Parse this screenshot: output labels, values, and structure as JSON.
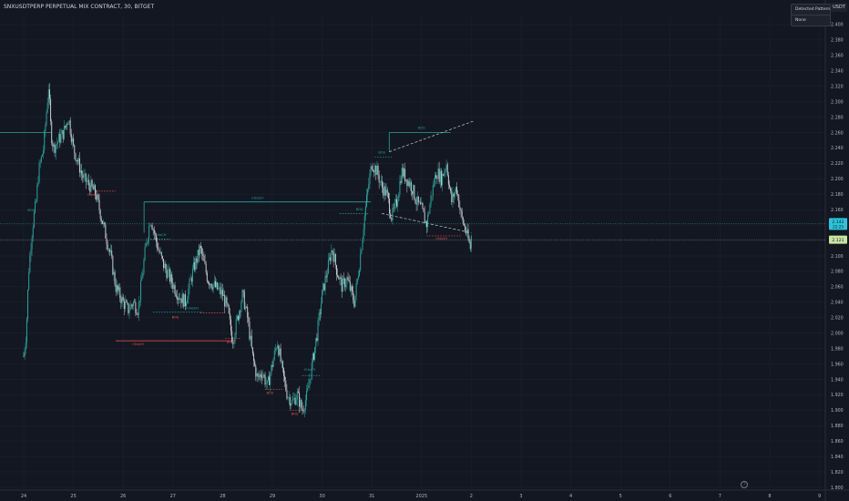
{
  "header": {
    "title": "SNXUSDTPERP PERPETUAL MIX CONTRACT, 30, BITGET",
    "panel_title": "Detected Pattern",
    "panel_value": "None",
    "unit": "USDT"
  },
  "colors": {
    "background": "#131722",
    "grid": "#1e222d",
    "up": "#26a69a",
    "down": "#ef5350",
    "wick": "#c5cbce",
    "label_bg": "#26c6da",
    "last_price_bg": "#c8e6a0"
  },
  "chart_data": {
    "type": "candlestick",
    "symbol": "SNXUSDTPERP",
    "interval": "30",
    "exchange": "BITGET",
    "y_axis": {
      "ylim": [
        1.8,
        2.42
      ],
      "ticks": [
        "1.800",
        "1.820",
        "1.840",
        "1.860",
        "1.880",
        "1.900",
        "1.920",
        "1.940",
        "1.960",
        "1.980",
        "2.000",
        "2.020",
        "2.040",
        "2.060",
        "2.080",
        "2.100",
        "2.120",
        "2.140",
        "2.160",
        "2.180",
        "2.200",
        "2.220",
        "2.240",
        "2.260",
        "2.280",
        "2.300",
        "2.320",
        "2.340",
        "2.360",
        "2.380",
        "2.400"
      ]
    },
    "x_axis": {
      "ticks": [
        "24",
        "25",
        "26",
        "27",
        "28",
        "29",
        "30",
        "31",
        "2025",
        "2",
        "3",
        "4",
        "5",
        "6",
        "7",
        "8",
        "9"
      ]
    },
    "price_path": [
      [
        0.0,
        1.97
      ],
      [
        0.05,
        2.0
      ],
      [
        0.1,
        2.08
      ],
      [
        0.15,
        2.12
      ],
      [
        0.2,
        2.15
      ],
      [
        0.25,
        2.17
      ],
      [
        0.3,
        2.21
      ],
      [
        0.4,
        2.24
      ],
      [
        0.5,
        2.32
      ],
      [
        0.55,
        2.26
      ],
      [
        0.6,
        2.24
      ],
      [
        0.7,
        2.25
      ],
      [
        0.8,
        2.26
      ],
      [
        0.9,
        2.28
      ],
      [
        1.0,
        2.24
      ],
      [
        1.2,
        2.2
      ],
      [
        1.35,
        2.19
      ],
      [
        1.45,
        2.18
      ],
      [
        1.6,
        2.14
      ],
      [
        1.75,
        2.1
      ],
      [
        1.85,
        2.06
      ],
      [
        2.0,
        2.04
      ],
      [
        2.1,
        2.03
      ],
      [
        2.2,
        2.04
      ],
      [
        2.3,
        2.03
      ],
      [
        2.45,
        2.11
      ],
      [
        2.55,
        2.15
      ],
      [
        2.7,
        2.11
      ],
      [
        2.8,
        2.09
      ],
      [
        2.95,
        2.07
      ],
      [
        3.1,
        2.05
      ],
      [
        3.25,
        2.04
      ],
      [
        3.4,
        2.08
      ],
      [
        3.55,
        2.11
      ],
      [
        3.7,
        2.07
      ],
      [
        3.85,
        2.06
      ],
      [
        4.0,
        2.05
      ],
      [
        4.1,
        2.03
      ],
      [
        4.2,
        1.99
      ],
      [
        4.3,
        2.02
      ],
      [
        4.4,
        2.05
      ],
      [
        4.5,
        2.02
      ],
      [
        4.6,
        1.97
      ],
      [
        4.7,
        1.94
      ],
      [
        4.8,
        1.95
      ],
      [
        4.9,
        1.93
      ],
      [
        5.0,
        1.96
      ],
      [
        5.1,
        1.99
      ],
      [
        5.2,
        1.95
      ],
      [
        5.3,
        1.92
      ],
      [
        5.4,
        1.91
      ],
      [
        5.5,
        1.92
      ],
      [
        5.6,
        1.9
      ],
      [
        5.7,
        1.92
      ],
      [
        5.8,
        1.96
      ],
      [
        5.9,
        2.0
      ],
      [
        6.0,
        2.05
      ],
      [
        6.1,
        2.08
      ],
      [
        6.2,
        2.11
      ],
      [
        6.3,
        2.08
      ],
      [
        6.4,
        2.06
      ],
      [
        6.5,
        2.07
      ],
      [
        6.6,
        2.05
      ],
      [
        6.65,
        2.04
      ],
      [
        6.75,
        2.09
      ],
      [
        6.85,
        2.15
      ],
      [
        6.95,
        2.2
      ],
      [
        7.0,
        2.22
      ],
      [
        7.1,
        2.21
      ],
      [
        7.2,
        2.19
      ],
      [
        7.3,
        2.18
      ],
      [
        7.4,
        2.15
      ],
      [
        7.5,
        2.17
      ],
      [
        7.6,
        2.21
      ],
      [
        7.7,
        2.2
      ],
      [
        7.8,
        2.19
      ],
      [
        7.9,
        2.17
      ],
      [
        8.0,
        2.16
      ],
      [
        8.1,
        2.14
      ],
      [
        8.2,
        2.18
      ],
      [
        8.3,
        2.21
      ],
      [
        8.4,
        2.2
      ],
      [
        8.5,
        2.22
      ],
      [
        8.6,
        2.17
      ],
      [
        8.7,
        2.19
      ],
      [
        8.8,
        2.15
      ],
      [
        8.9,
        2.13
      ],
      [
        8.98,
        2.11
      ],
      [
        9.02,
        2.14
      ]
    ],
    "horizontal_levels": [
      {
        "x0": -0.5,
        "x1": 0.55,
        "y": 2.26,
        "color": "#26a69a"
      },
      {
        "x0": 2.42,
        "x1": 6.98,
        "y": 2.17,
        "color": "#26a69a"
      },
      {
        "x0": 1.85,
        "x1": 4.25,
        "y": 1.99,
        "color": "#ef5350"
      },
      {
        "x0": 7.35,
        "x1": 8.58,
        "y": 2.26,
        "color": "#26a69a"
      }
    ],
    "dotted_levels": [
      {
        "x0": 1.45,
        "x1": 1.85,
        "y": 2.184,
        "color": "#ef5350"
      },
      {
        "x0": 2.55,
        "x1": 2.95,
        "y": 2.122,
        "color": "#26a69a"
      },
      {
        "x0": 2.6,
        "x1": 3.6,
        "y": 2.027,
        "color": "#26a69a"
      },
      {
        "x0": 3.55,
        "x1": 4.05,
        "y": 2.026,
        "color": "#ef5350"
      },
      {
        "x0": 4.05,
        "x1": 4.35,
        "y": 1.993,
        "color": "#ef5350"
      },
      {
        "x0": 4.85,
        "x1": 5.2,
        "y": 1.927,
        "color": "#ef5350"
      },
      {
        "x0": 5.35,
        "x1": 5.65,
        "y": 1.9,
        "color": "#ef5350"
      },
      {
        "x0": 5.6,
        "x1": 5.95,
        "y": 1.945,
        "color": "#26a69a"
      },
      {
        "x0": 6.35,
        "x1": 6.95,
        "y": 2.155,
        "color": "#26a69a"
      },
      {
        "x0": 7.05,
        "x1": 7.4,
        "y": 2.228,
        "color": "#26a69a"
      },
      {
        "x0": 8.1,
        "x1": 8.8,
        "y": 2.126,
        "color": "#ef5350"
      }
    ],
    "trend_lines": [
      {
        "x0": 7.35,
        "y0": 2.235,
        "x1": 9.05,
        "y1": 2.275,
        "color": "#c5cbce"
      },
      {
        "x0": 7.2,
        "y0": 2.155,
        "x1": 9.0,
        "y1": 2.13,
        "color": "#c5cbce"
      }
    ],
    "annotations": [
      {
        "x": 0.15,
        "y": 2.158,
        "text": "BOS",
        "color": "#26a69a"
      },
      {
        "x": 1.4,
        "y": 2.178,
        "text": "CHoCH",
        "color": "#ef5350"
      },
      {
        "x": 4.7,
        "y": 2.174,
        "text": "CHoCH",
        "color": "#26a69a"
      },
      {
        "x": 2.3,
        "y": 1.984,
        "text": "CHoCH",
        "color": "#ef5350"
      },
      {
        "x": 2.75,
        "y": 2.126,
        "text": "CHoCH",
        "color": "#26a69a"
      },
      {
        "x": 3.05,
        "y": 2.019,
        "text": "BOS",
        "color": "#ef5350"
      },
      {
        "x": 3.4,
        "y": 2.031,
        "text": "CHoCH",
        "color": "#26a69a"
      },
      {
        "x": 4.15,
        "y": 1.987,
        "text": "BOS",
        "color": "#ef5350"
      },
      {
        "x": 4.95,
        "y": 1.921,
        "text": "BOS",
        "color": "#ef5350"
      },
      {
        "x": 5.45,
        "y": 1.894,
        "text": "BOS",
        "color": "#ef5350"
      },
      {
        "x": 5.75,
        "y": 1.951,
        "text": "CHoCH",
        "color": "#26a69a"
      },
      {
        "x": 6.75,
        "y": 2.159,
        "text": "BOS",
        "color": "#26a69a"
      },
      {
        "x": 7.2,
        "y": 2.233,
        "text": "BOS",
        "color": "#26a69a"
      },
      {
        "x": 8.0,
        "y": 2.265,
        "text": "BOS",
        "color": "#26a69a"
      },
      {
        "x": 8.4,
        "y": 2.121,
        "text": "CHoCH",
        "color": "#ef5350"
      }
    ],
    "last_price": {
      "value": "2.142",
      "countdown": "22:25",
      "second_value": "2.121"
    }
  }
}
